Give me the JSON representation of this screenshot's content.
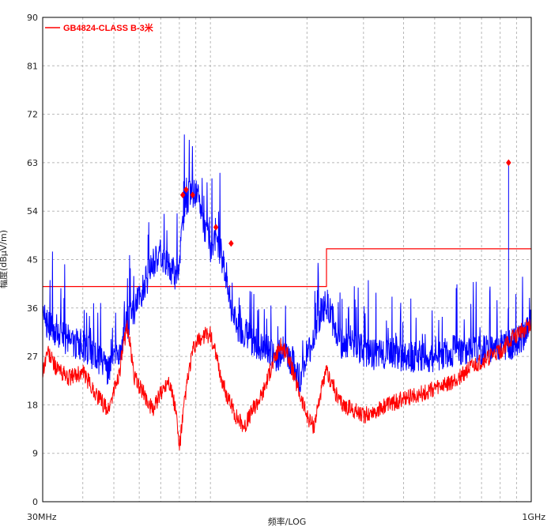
{
  "chart_data": {
    "type": "line",
    "xlabel": "频率/LOG",
    "ylabel": "幅度(dBμV/m)",
    "x_scale": "log",
    "xlim_mhz": [
      30,
      1000
    ],
    "x_tick_labels": [
      "30MHz",
      "1GHz"
    ],
    "ylim": [
      0,
      90
    ],
    "y_ticks": [
      0,
      9,
      18,
      27,
      36,
      45,
      54,
      63,
      72,
      81,
      90
    ],
    "grid": true,
    "legend": {
      "position": "top-left",
      "entries": [
        {
          "name": "GB4824-CLASS B-3米",
          "color": "#ff0000"
        }
      ]
    },
    "series": [
      {
        "name": "GB4824-CLASS B-3米",
        "role": "limit",
        "color": "#ff0000",
        "x": [
          30,
          230,
          230,
          1000
        ],
        "y": [
          40,
          40,
          47,
          47
        ]
      },
      {
        "role": "peak-trace",
        "color": "#0000ff",
        "x": [
          30,
          31,
          33,
          36,
          40,
          44,
          48,
          52,
          55,
          58,
          62,
          66,
          70,
          75,
          78,
          80,
          82,
          84,
          86,
          88,
          90,
          93,
          96,
          100,
          104,
          108,
          112,
          116,
          120,
          130,
          140,
          150,
          160,
          170,
          180,
          190,
          200,
          210,
          220,
          230,
          240,
          250,
          260,
          270,
          280,
          300,
          330,
          360,
          400,
          450,
          500,
          560,
          620,
          700,
          800,
          860,
          900,
          950,
          1000
        ],
        "y": [
          37,
          33,
          31,
          30,
          29,
          27,
          24,
          28,
          33,
          36,
          40,
          44,
          46,
          43,
          42,
          45,
          52,
          56,
          57,
          57,
          57,
          55,
          51,
          47,
          50,
          46,
          42,
          36,
          33,
          31,
          29,
          28,
          27,
          28,
          26,
          23,
          27,
          31,
          35,
          37,
          34,
          30,
          29,
          30,
          29,
          28,
          27,
          28,
          27,
          27,
          27,
          28,
          28,
          28,
          29,
          29,
          30,
          31,
          33
        ]
      },
      {
        "role": "average-trace",
        "color": "#ff0000",
        "x": [
          30,
          31,
          33,
          36,
          40,
          44,
          48,
          52,
          55,
          58,
          62,
          66,
          70,
          74,
          78,
          80,
          84,
          88,
          92,
          96,
          100,
          104,
          108,
          112,
          116,
          120,
          128,
          135,
          145,
          155,
          165,
          175,
          185,
          200,
          210,
          220,
          230,
          240,
          250,
          260,
          280,
          300,
          330,
          360,
          400,
          450,
          500,
          560,
          620,
          700,
          800,
          900,
          1000
        ],
        "y": [
          24,
          28,
          25,
          23,
          24,
          20,
          17,
          24,
          33,
          23,
          20,
          17,
          20,
          23,
          17,
          10,
          21,
          28,
          30,
          31,
          31,
          27,
          23,
          20,
          18,
          16,
          14,
          17,
          20,
          25,
          29,
          27,
          22,
          16,
          14,
          20,
          24,
          22,
          19,
          18,
          17,
          16,
          17,
          18,
          19,
          20,
          21,
          22,
          24,
          26,
          28,
          31,
          33
        ]
      }
    ],
    "markers": {
      "color": "#ff0000",
      "x": [
        82,
        84,
        88,
        104,
        116,
        850
      ],
      "y": [
        57,
        58,
        57,
        51,
        48,
        63
      ]
    }
  }
}
